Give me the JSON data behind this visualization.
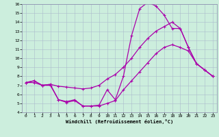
{
  "xlabel": "Windchill (Refroidissement éolien,°C)",
  "background_color": "#cceedd",
  "grid_color": "#aabbcc",
  "line_color": "#aa00aa",
  "xlim": [
    -0.5,
    23.5
  ],
  "ylim": [
    4,
    16
  ],
  "yticks": [
    4,
    5,
    6,
    7,
    8,
    9,
    10,
    11,
    12,
    13,
    14,
    15,
    16
  ],
  "xticks": [
    0,
    1,
    2,
    3,
    4,
    5,
    6,
    7,
    8,
    9,
    10,
    11,
    12,
    13,
    14,
    15,
    16,
    17,
    18,
    19,
    20,
    21,
    22,
    23
  ],
  "s1_x": [
    0,
    1,
    2,
    3,
    4,
    5,
    6,
    7,
    8,
    9,
    10,
    11,
    12,
    13,
    14,
    15,
    16,
    17,
    18,
    19,
    20,
    21,
    22,
    23
  ],
  "s1_y": [
    7.3,
    7.5,
    7.0,
    7.1,
    5.4,
    5.2,
    5.4,
    4.7,
    4.7,
    4.8,
    6.5,
    5.4,
    8.0,
    12.5,
    15.5,
    16.2,
    15.8,
    14.8,
    13.3,
    13.3,
    11.2,
    9.4,
    8.7,
    8.0
  ],
  "s2_x": [
    0,
    1,
    2,
    3,
    4,
    5,
    6,
    7,
    8,
    9,
    10,
    11,
    12,
    13,
    14,
    15,
    16,
    17,
    18,
    19,
    20,
    21,
    22,
    23
  ],
  "s2_y": [
    7.3,
    7.3,
    7.0,
    7.1,
    6.9,
    6.8,
    6.7,
    6.6,
    6.7,
    7.0,
    7.7,
    8.2,
    9.0,
    10.0,
    11.2,
    12.2,
    13.0,
    13.5,
    14.0,
    13.3,
    11.2,
    9.4,
    8.7,
    8.0
  ],
  "s3_x": [
    0,
    1,
    2,
    3,
    4,
    5,
    6,
    7,
    8,
    9,
    10,
    11,
    12,
    13,
    14,
    15,
    16,
    17,
    18,
    19,
    20,
    21,
    22,
    23
  ],
  "s3_y": [
    7.3,
    7.5,
    7.0,
    7.0,
    5.4,
    5.1,
    5.3,
    4.7,
    4.7,
    4.7,
    5.0,
    5.3,
    6.5,
    7.5,
    8.5,
    9.5,
    10.5,
    11.2,
    11.5,
    11.2,
    10.8,
    9.4,
    8.7,
    8.0
  ]
}
